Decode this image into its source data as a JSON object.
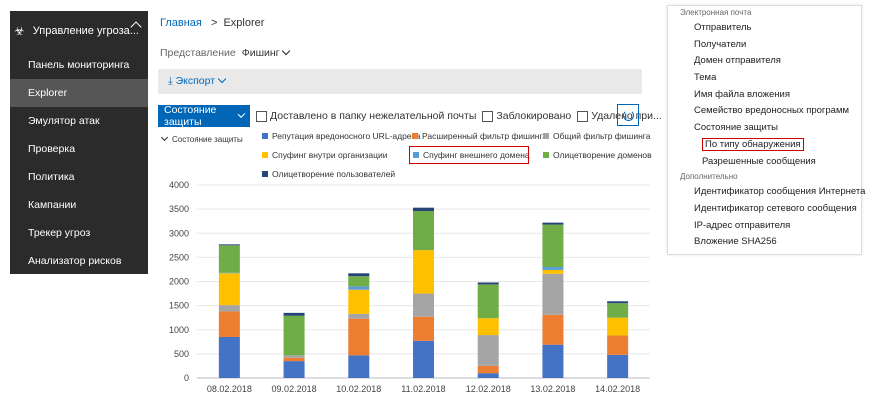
{
  "sidebar": {
    "header_label": "Управление угроза...",
    "items": [
      {
        "label": "Панель мониторинга",
        "active": false
      },
      {
        "label": "Explorer",
        "active": true
      },
      {
        "label": "Эмулятор атак",
        "active": false
      },
      {
        "label": "Проверка",
        "active": false
      },
      {
        "label": "Политика",
        "active": false
      },
      {
        "label": "Кампании",
        "active": false
      },
      {
        "label": "Трекер угроз",
        "active": false
      },
      {
        "label": "Анализатор рисков",
        "active": false
      }
    ]
  },
  "breadcrumb": {
    "home": "Главная",
    "separator": ">",
    "current": "Explorer"
  },
  "view": {
    "label": "Представление",
    "value": "Фишинг"
  },
  "export": {
    "label": "Экспорт"
  },
  "filters": {
    "state_dropdown": "Состояние защиты",
    "checkboxes": [
      "Доставлено в папку нежелательной почты",
      "Заблокировано",
      "Удалено при..."
    ]
  },
  "legend": {
    "title": "Состояние защиты",
    "entries": [
      {
        "name": "Репутация вредоносного URL-адреса",
        "color": "#4472c4"
      },
      {
        "name": "Расширенный фильтр фишинга",
        "color": "#ed7d31"
      },
      {
        "name": "Общий фильтр фишинга",
        "color": "#a5a5a5"
      },
      {
        "name": "Спуфинг внутри организации",
        "color": "#ffc000"
      },
      {
        "name": "Спуфинг внешнего домена",
        "color": "#5b9bd5"
      },
      {
        "name": "Олицетворение доменов",
        "color": "#70ad47"
      },
      {
        "name": "Олицетворение пользователей",
        "color": "#264478"
      }
    ]
  },
  "chart_data": {
    "type": "bar",
    "stacked": true,
    "categories": [
      "08.02.2018",
      "09.02.2018",
      "10.02.2018",
      "11.02.2018",
      "12.02.2018",
      "13.02.2018",
      "14.02.2018"
    ],
    "ylim": [
      0,
      4000
    ],
    "yticks": [
      0,
      500,
      1000,
      1500,
      2000,
      2500,
      3000,
      3500,
      4000
    ],
    "series": [
      {
        "name": "Репутация вредоносного URL-адреса",
        "color": "#4472c4",
        "values": [
          850,
          350,
          470,
          770,
          100,
          690,
          480
        ]
      },
      {
        "name": "Расширенный фильтр фишинга",
        "color": "#ed7d31",
        "values": [
          530,
          70,
          760,
          500,
          150,
          620,
          400
        ]
      },
      {
        "name": "Общий фильтр фишинга",
        "color": "#a5a5a5",
        "values": [
          130,
          50,
          100,
          480,
          640,
          850,
          0
        ]
      },
      {
        "name": "Спуфинг внутри организации",
        "color": "#ffc000",
        "values": [
          660,
          0,
          500,
          900,
          350,
          80,
          370
        ]
      },
      {
        "name": "Спуфинг внешнего домена",
        "color": "#5b9bd5",
        "values": [
          10,
          0,
          70,
          0,
          0,
          60,
          0
        ]
      },
      {
        "name": "Олицетворение доменов",
        "color": "#70ad47",
        "values": [
          570,
          820,
          210,
          810,
          700,
          880,
          300
        ]
      },
      {
        "name": "Олицетворение пользователей",
        "color": "#264478",
        "values": [
          20,
          60,
          60,
          70,
          40,
          40,
          40
        ]
      }
    ]
  },
  "panel": {
    "groups": [
      {
        "header": "Электронная почта",
        "items": [
          {
            "label": "Отправитель"
          },
          {
            "label": "Получатели"
          },
          {
            "label": "Домен отправителя"
          },
          {
            "label": "Тема"
          },
          {
            "label": "Имя файла вложения"
          },
          {
            "label": "Семейство вредоносных программ"
          },
          {
            "label": "Состояние защиты"
          },
          {
            "label": "По типу обнаружения",
            "highlight": true,
            "sub": true
          },
          {
            "label": "Разрешенные сообщения",
            "sub": true
          }
        ]
      },
      {
        "header": "Дополнительно",
        "items": [
          {
            "label": "Идентификатор сообщения Интернета"
          },
          {
            "label": "Идентификатор сетевого сообщения"
          },
          {
            "label": "IP-адрес отправителя"
          },
          {
            "label": "Вложение SHA256"
          }
        ]
      }
    ]
  }
}
